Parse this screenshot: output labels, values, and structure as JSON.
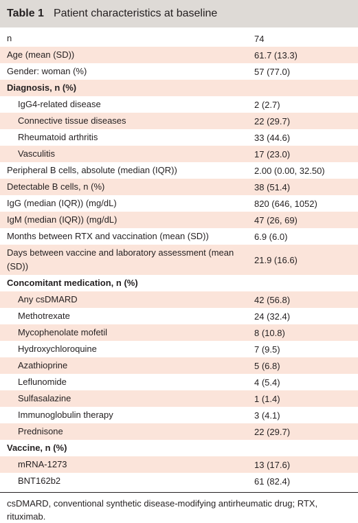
{
  "header": {
    "label": "Table 1",
    "title": "Patient characteristics at baseline"
  },
  "table": {
    "rows": [
      {
        "label": "n",
        "value": "74"
      },
      {
        "label": "Age (mean (SD))",
        "value": "61.7 (13.3)"
      },
      {
        "label": "Gender: woman (%)",
        "value": "57 (77.0)"
      },
      {
        "label": "Diagnosis, n (%)",
        "items": [
          {
            "label": "IgG4-related disease",
            "value": "2 (2.7)"
          },
          {
            "label": "Connective tissue diseases",
            "value": "22 (29.7)"
          },
          {
            "label": "Rheumatoid arthritis",
            "value": "33 (44.6)"
          },
          {
            "label": "Vasculitis",
            "value": "17 (23.0)"
          }
        ]
      },
      {
        "label": "Peripheral B cells, absolute (median (IQR))",
        "value": "2.00 (0.00, 32.50)"
      },
      {
        "label": "Detectable B cells, n (%)",
        "value": "38 (51.4)"
      },
      {
        "label": "IgG (median (IQR)) (mg/dL)",
        "value": "820 (646, 1052)"
      },
      {
        "label": "IgM (median (IQR)) (mg/dL)",
        "value": "47 (26, 69)"
      },
      {
        "label": "Months between RTX and vaccination (mean (SD))",
        "value": "6.9 (6.0)"
      },
      {
        "label": "Days between vaccine and laboratory assessment (mean (SD))",
        "value": "21.9 (16.6)"
      },
      {
        "label": "Concomitant medication, n (%)",
        "items": [
          {
            "label": "Any csDMARD",
            "value": "42 (56.8)"
          },
          {
            "label": "Methotrexate",
            "value": "24 (32.4)"
          },
          {
            "label": "Mycophenolate mofetil",
            "value": "8 (10.8)"
          },
          {
            "label": "Hydroxychloroquine",
            "value": "7 (9.5)"
          },
          {
            "label": "Azathioprine",
            "value": "5 (6.8)"
          },
          {
            "label": "Leflunomide",
            "value": "4 (5.4)"
          },
          {
            "label": "Sulfasalazine",
            "value": "1 (1.4)"
          },
          {
            "label": "Immunoglobulin therapy",
            "value": "3 (4.1)"
          },
          {
            "label": "Prednisone",
            "value": "22 (29.7)"
          }
        ]
      },
      {
        "label": "Vaccine, n (%)",
        "items": [
          {
            "label": "mRNA-1273",
            "value": "13 (17.6)"
          },
          {
            "label": "BNT162b2",
            "value": "61 (82.4)"
          }
        ]
      }
    ]
  },
  "footnote": "csDMARD, conventional synthetic disease-modifying antirheumatic drug; RTX, rituximab."
}
